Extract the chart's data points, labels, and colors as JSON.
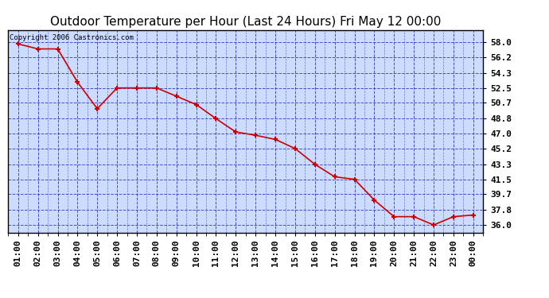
{
  "title": "Outdoor Temperature per Hour (Last 24 Hours) Fri May 12 00:00",
  "copyright": "Copyright 2006 Castronics.com",
  "x_labels": [
    "01:00",
    "02:00",
    "03:00",
    "04:00",
    "05:00",
    "06:00",
    "07:00",
    "08:00",
    "09:00",
    "10:00",
    "11:00",
    "12:00",
    "13:00",
    "14:00",
    "15:00",
    "16:00",
    "17:00",
    "18:00",
    "19:00",
    "20:00",
    "21:00",
    "22:00",
    "23:00",
    "00:00"
  ],
  "y_values": [
    57.8,
    57.2,
    57.2,
    53.2,
    50.0,
    52.5,
    52.5,
    52.5,
    51.5,
    50.5,
    48.8,
    47.2,
    46.8,
    46.3,
    45.2,
    43.3,
    41.8,
    41.5,
    39.0,
    37.0,
    37.0,
    36.0,
    37.0,
    37.2
  ],
  "y_min": 35.1,
  "y_max": 59.5,
  "y_ticks": [
    36.0,
    37.8,
    39.7,
    41.5,
    43.3,
    45.2,
    47.0,
    48.8,
    50.7,
    52.5,
    54.3,
    56.2,
    58.0
  ],
  "line_color": "#cc0000",
  "marker_color": "#cc0000",
  "fig_bg_color": "#ffffff",
  "plot_bg_color": "#ccdcff",
  "grid_color": "#3333bb",
  "border_color": "#000000",
  "title_fontsize": 11,
  "tick_fontsize": 8,
  "copyright_fontsize": 6.5
}
